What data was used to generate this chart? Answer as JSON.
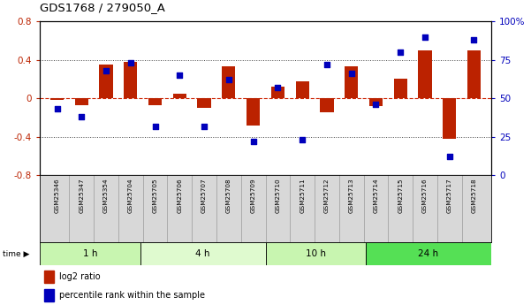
{
  "title": "GDS1768 / 279050_A",
  "samples": [
    "GSM25346",
    "GSM25347",
    "GSM25354",
    "GSM25704",
    "GSM25705",
    "GSM25706",
    "GSM25707",
    "GSM25708",
    "GSM25709",
    "GSM25710",
    "GSM25711",
    "GSM25712",
    "GSM25713",
    "GSM25714",
    "GSM25715",
    "GSM25716",
    "GSM25717",
    "GSM25718"
  ],
  "log2_ratio": [
    -0.02,
    -0.07,
    0.35,
    0.38,
    -0.07,
    0.05,
    -0.1,
    0.33,
    -0.28,
    0.12,
    0.18,
    -0.14,
    0.33,
    -0.08,
    0.2,
    0.5,
    -0.42,
    0.5
  ],
  "percentile": [
    43,
    38,
    68,
    73,
    32,
    65,
    32,
    62,
    22,
    57,
    23,
    72,
    66,
    46,
    80,
    90,
    12,
    88
  ],
  "time_groups": [
    {
      "label": "1 h",
      "start": 0,
      "end": 4,
      "color": "#c8f5b0"
    },
    {
      "label": "4 h",
      "start": 4,
      "end": 9,
      "color": "#dffacf"
    },
    {
      "label": "10 h",
      "start": 9,
      "end": 13,
      "color": "#c8f5b0"
    },
    {
      "label": "24 h",
      "start": 13,
      "end": 18,
      "color": "#55e055"
    }
  ],
  "bar_color": "#bb2200",
  "dot_color": "#0000bb",
  "ylim_left": [
    -0.8,
    0.8
  ],
  "ylim_right": [
    0,
    100
  ],
  "yticks_left": [
    -0.8,
    -0.4,
    0.0,
    0.4,
    0.8
  ],
  "yticks_right": [
    0,
    25,
    50,
    75,
    100
  ],
  "hline_color": "#cc2200",
  "dotted_color": "#444444",
  "bg_color": "#ffffff",
  "label_bg": "#d8d8d8"
}
